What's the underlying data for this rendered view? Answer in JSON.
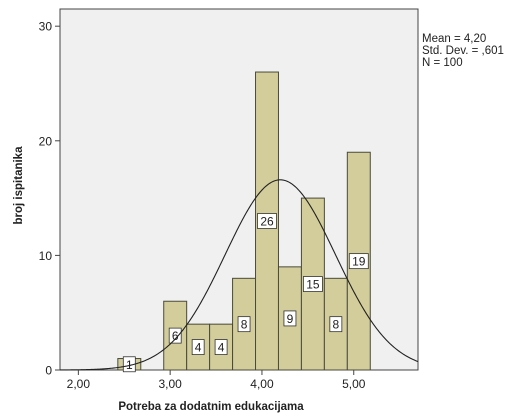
{
  "chart_data": {
    "type": "histogram",
    "title": "",
    "xlabel": "Potreba za dodatnim edukacijama",
    "ylabel": "broj ispitanika",
    "xlim": [
      1.8,
      5.7
    ],
    "ylim": [
      0,
      31.5
    ],
    "x_ticks": [
      2.0,
      3.0,
      4.0,
      5.0
    ],
    "x_tick_labels": [
      "2,00",
      "3,00",
      "4,00",
      "5,00"
    ],
    "y_ticks": [
      0,
      10,
      20,
      30
    ],
    "y_tick_labels": [
      "0",
      "10",
      "20",
      "30"
    ],
    "bins": [
      {
        "from": 2.43,
        "to": 2.68,
        "count": 1,
        "label": "1"
      },
      {
        "from": 2.93,
        "to": 3.18,
        "count": 6,
        "label": "6"
      },
      {
        "from": 3.18,
        "to": 3.43,
        "count": 4,
        "label": "4"
      },
      {
        "from": 3.43,
        "to": 3.68,
        "count": 4,
        "label": "4"
      },
      {
        "from": 3.68,
        "to": 3.93,
        "count": 8,
        "label": "8"
      },
      {
        "from": 3.93,
        "to": 4.18,
        "count": 26,
        "label": "26"
      },
      {
        "from": 4.18,
        "to": 4.43,
        "count": 9,
        "label": "9"
      },
      {
        "from": 4.43,
        "to": 4.68,
        "count": 15,
        "label": "15"
      },
      {
        "from": 4.68,
        "to": 4.93,
        "count": 8,
        "label": "8"
      },
      {
        "from": 4.93,
        "to": 5.18,
        "count": 19,
        "label": "19"
      }
    ],
    "normal_curve": {
      "mean": 4.2,
      "sd": 0.601,
      "n": 100
    },
    "stats": {
      "mean": "Mean = 4,20",
      "sd": "Std. Dev. = ,601",
      "n": "N = 100"
    },
    "colors": {
      "plot_bg": "#f0f0f0",
      "bar_fill": "#d3cd9b",
      "bar_stroke": "#4a4a3a",
      "curve": "#222222",
      "axis": "#444444"
    },
    "grid": false,
    "legend": "none"
  }
}
